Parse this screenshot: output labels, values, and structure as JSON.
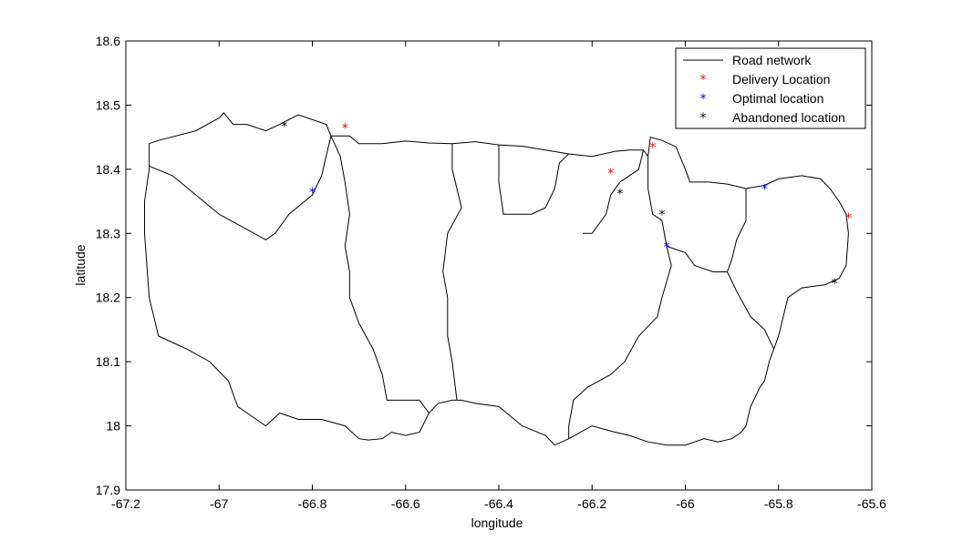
{
  "chart_data": {
    "type": "scatter",
    "xlabel": "longitude",
    "ylabel": "latitude",
    "xlim": [
      -67.2,
      -65.6
    ],
    "ylim": [
      17.9,
      18.6
    ],
    "xticks": [
      "-67.2",
      "-67",
      "-66.8",
      "-66.6",
      "-66.4",
      "-66.2",
      "-66",
      "-65.8",
      "-65.6"
    ],
    "yticks": [
      "17.9",
      "18",
      "18.1",
      "18.2",
      "18.3",
      "18.4",
      "18.5",
      "18.6"
    ],
    "grid": false,
    "legend_position": "top-right",
    "road_network": {
      "name": "Road network",
      "color": "#000000",
      "paths": [
        [
          [
            -67.15,
            18.44
          ],
          [
            -67.13,
            18.445
          ],
          [
            -67.05,
            18.46
          ],
          [
            -67.0,
            18.48
          ],
          [
            -66.99,
            18.488
          ],
          [
            -66.97,
            18.47
          ],
          [
            -66.94,
            18.47
          ],
          [
            -66.9,
            18.46
          ],
          [
            -66.87,
            18.47
          ],
          [
            -66.83,
            18.485
          ],
          [
            -66.77,
            18.47
          ],
          [
            -66.76,
            18.452
          ],
          [
            -66.72,
            18.452
          ],
          [
            -66.7,
            18.44
          ],
          [
            -66.65,
            18.44
          ],
          [
            -66.6,
            18.444
          ],
          [
            -66.55,
            18.441
          ],
          [
            -66.5,
            18.44
          ],
          [
            -66.45,
            18.443
          ],
          [
            -66.4,
            18.438
          ],
          [
            -66.35,
            18.436
          ],
          [
            -66.3,
            18.43
          ],
          [
            -66.25,
            18.424
          ],
          [
            -66.2,
            18.42
          ],
          [
            -66.15,
            18.428
          ],
          [
            -66.12,
            18.43
          ],
          [
            -66.09,
            18.43
          ],
          [
            -66.08,
            18.42
          ],
          [
            -66.075,
            18.45
          ],
          [
            -66.05,
            18.445
          ],
          [
            -66.02,
            18.435
          ],
          [
            -66.0,
            18.4
          ],
          [
            -65.99,
            18.38
          ],
          [
            -65.97,
            18.38
          ],
          [
            -65.95,
            18.38
          ],
          [
            -65.91,
            18.377
          ],
          [
            -65.87,
            18.37
          ],
          [
            -65.83,
            18.375
          ],
          [
            -65.8,
            18.385
          ],
          [
            -65.75,
            18.39
          ],
          [
            -65.71,
            18.385
          ],
          [
            -65.69,
            18.37
          ],
          [
            -65.67,
            18.35
          ],
          [
            -65.655,
            18.33
          ],
          [
            -65.65,
            18.3
          ],
          [
            -65.655,
            18.25
          ],
          [
            -65.67,
            18.23
          ],
          [
            -65.7,
            18.22
          ],
          [
            -65.75,
            18.215
          ],
          [
            -65.78,
            18.2
          ],
          [
            -65.79,
            18.17
          ],
          [
            -65.8,
            18.14
          ],
          [
            -65.81,
            18.12
          ],
          [
            -65.82,
            18.1
          ],
          [
            -65.83,
            18.07
          ],
          [
            -65.84,
            18.06
          ],
          [
            -65.86,
            18.03
          ],
          [
            -65.87,
            18.0
          ],
          [
            -65.88,
            17.99
          ],
          [
            -65.9,
            17.98
          ],
          [
            -65.93,
            17.975
          ],
          [
            -65.96,
            17.98
          ],
          [
            -66.0,
            17.97
          ],
          [
            -66.04,
            17.97
          ],
          [
            -66.08,
            17.975
          ],
          [
            -66.12,
            17.985
          ],
          [
            -66.15,
            17.99
          ],
          [
            -66.2,
            18.0
          ],
          [
            -66.25,
            17.98
          ],
          [
            -66.28,
            17.97
          ],
          [
            -66.3,
            17.985
          ],
          [
            -66.35,
            18.0
          ],
          [
            -66.4,
            18.03
          ],
          [
            -66.45,
            18.035
          ],
          [
            -66.48,
            18.04
          ],
          [
            -66.5,
            18.04
          ],
          [
            -66.53,
            18.035
          ],
          [
            -66.55,
            18.02
          ],
          [
            -66.57,
            17.99
          ],
          [
            -66.6,
            17.985
          ],
          [
            -66.63,
            17.99
          ],
          [
            -66.65,
            17.98
          ],
          [
            -66.68,
            17.978
          ],
          [
            -66.7,
            17.98
          ],
          [
            -66.73,
            18.0
          ],
          [
            -66.78,
            18.01
          ],
          [
            -66.83,
            18.01
          ],
          [
            -66.87,
            18.02
          ],
          [
            -66.9,
            18.0
          ],
          [
            -66.94,
            18.02
          ],
          [
            -66.96,
            18.03
          ],
          [
            -66.98,
            18.07
          ],
          [
            -67.02,
            18.1
          ],
          [
            -67.07,
            18.12
          ],
          [
            -67.1,
            18.13
          ],
          [
            -67.13,
            18.14
          ],
          [
            -67.15,
            18.2
          ],
          [
            -67.16,
            18.3
          ],
          [
            -67.16,
            18.35
          ],
          [
            -67.15,
            18.4
          ],
          [
            -67.15,
            18.44
          ]
        ],
        [
          [
            -67.15,
            18.405
          ],
          [
            -67.1,
            18.39
          ],
          [
            -67.05,
            18.36
          ],
          [
            -67.0,
            18.33
          ],
          [
            -66.95,
            18.31
          ],
          [
            -66.9,
            18.29
          ],
          [
            -66.88,
            18.3
          ],
          [
            -66.85,
            18.33
          ],
          [
            -66.8,
            18.36
          ],
          [
            -66.78,
            18.39
          ],
          [
            -66.76,
            18.452
          ]
        ],
        [
          [
            -66.76,
            18.452
          ],
          [
            -66.74,
            18.42
          ],
          [
            -66.73,
            18.38
          ],
          [
            -66.72,
            18.33
          ],
          [
            -66.73,
            18.28
          ],
          [
            -66.72,
            18.24
          ],
          [
            -66.72,
            18.2
          ],
          [
            -66.7,
            18.16
          ],
          [
            -66.67,
            18.12
          ],
          [
            -66.65,
            18.08
          ],
          [
            -66.64,
            18.04
          ],
          [
            -66.6,
            18.04
          ],
          [
            -66.57,
            18.04
          ],
          [
            -66.55,
            18.02
          ]
        ],
        [
          [
            -66.5,
            18.44
          ],
          [
            -66.5,
            18.4
          ],
          [
            -66.48,
            18.34
          ],
          [
            -66.51,
            18.3
          ],
          [
            -66.52,
            18.24
          ],
          [
            -66.51,
            18.2
          ],
          [
            -66.51,
            18.14
          ],
          [
            -66.5,
            18.1
          ],
          [
            -66.49,
            18.04
          ]
        ],
        [
          [
            -66.4,
            18.438
          ],
          [
            -66.4,
            18.38
          ],
          [
            -66.39,
            18.33
          ],
          [
            -66.37,
            18.33
          ],
          [
            -66.35,
            18.33
          ],
          [
            -66.33,
            18.33
          ],
          [
            -66.3,
            18.34
          ],
          [
            -66.28,
            18.37
          ],
          [
            -66.27,
            18.41
          ],
          [
            -66.25,
            18.424
          ]
        ],
        [
          [
            -66.09,
            18.43
          ],
          [
            -66.1,
            18.4
          ],
          [
            -66.14,
            18.38
          ],
          [
            -66.16,
            18.36
          ],
          [
            -66.17,
            18.33
          ],
          [
            -66.2,
            18.3
          ],
          [
            -66.22,
            18.3
          ]
        ],
        [
          [
            -66.08,
            18.42
          ],
          [
            -66.08,
            18.37
          ],
          [
            -66.07,
            18.33
          ],
          [
            -66.05,
            18.32
          ],
          [
            -66.04,
            18.28
          ],
          [
            -66.03,
            18.25
          ],
          [
            -66.05,
            18.2
          ],
          [
            -66.06,
            18.17
          ],
          [
            -66.1,
            18.14
          ],
          [
            -66.13,
            18.1
          ],
          [
            -66.16,
            18.08
          ],
          [
            -66.21,
            18.06
          ],
          [
            -66.24,
            18.04
          ],
          [
            -66.25,
            18.0
          ],
          [
            -66.25,
            17.98
          ]
        ],
        [
          [
            -66.04,
            18.28
          ],
          [
            -66.0,
            18.27
          ],
          [
            -65.98,
            18.25
          ],
          [
            -65.94,
            18.24
          ],
          [
            -65.91,
            18.24
          ],
          [
            -65.9,
            18.26
          ],
          [
            -65.89,
            18.29
          ],
          [
            -65.87,
            18.32
          ],
          [
            -65.87,
            18.35
          ],
          [
            -65.87,
            18.37
          ]
        ],
        [
          [
            -65.91,
            18.24
          ],
          [
            -65.89,
            18.21
          ],
          [
            -65.86,
            18.17
          ],
          [
            -65.83,
            18.15
          ],
          [
            -65.81,
            18.12
          ]
        ]
      ]
    },
    "series": [
      {
        "name": "Delivery Location",
        "color": "#ff0000",
        "marker": "*",
        "x": [
          -66.73,
          -66.16,
          -66.07,
          -65.65
        ],
        "y": [
          18.47,
          18.4,
          18.44,
          18.33
        ]
      },
      {
        "name": "Optimal location",
        "color": "#0000ff",
        "marker": "*",
        "x": [
          -66.8,
          -66.04,
          -65.83
        ],
        "y": [
          18.37,
          18.285,
          18.375
        ]
      },
      {
        "name": "Abandoned location",
        "color": "#000000",
        "marker": "*",
        "x": [
          -66.86,
          -66.14,
          -66.05,
          -65.68
        ],
        "y": [
          18.473,
          18.368,
          18.335,
          18.228
        ]
      }
    ]
  }
}
